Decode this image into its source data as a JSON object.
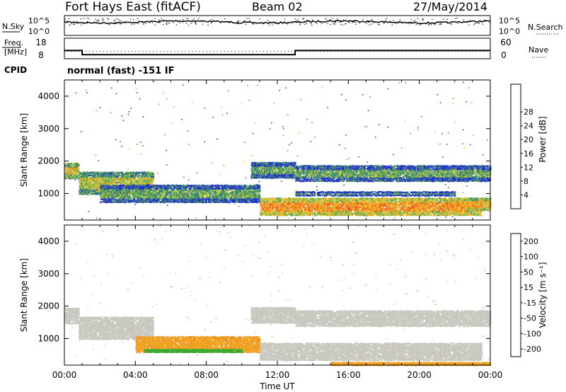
{
  "header": {
    "station": "Fort Hays East (fitACF)",
    "beam": "Beam 02",
    "date": "27/May/2014"
  },
  "noise_panel": {
    "left_label": "N.Sky",
    "right_label": "N.Search",
    "left_ticks": [
      "10^5",
      "10^0"
    ],
    "right_ticks": [
      "10^5",
      "10^0"
    ]
  },
  "freq_panel": {
    "left_label_line1": "Freq.",
    "left_label_line2": "[MHz]",
    "right_label": "Nave",
    "left_ticks": [
      "18",
      "8"
    ],
    "right_ticks": [
      "60",
      "0"
    ],
    "freq_mhz_levels": [
      {
        "from_hour": 0,
        "to_hour": 1.0,
        "value": 12
      },
      {
        "from_hour": 1.0,
        "to_hour": 13.0,
        "value": 10
      },
      {
        "from_hour": 13.0,
        "to_hour": 24,
        "value": 12
      }
    ]
  },
  "cpid": {
    "label": "CPID",
    "text": "normal (fast) -151 IF"
  },
  "chart_data": [
    {
      "type": "heatmap",
      "panel": "power",
      "ylabel": "Slant Range [km]",
      "y_ticks": [
        "1000",
        "2000",
        "3000",
        "4000"
      ],
      "ylim": [
        180,
        4500
      ],
      "xlim_hours": [
        0,
        24
      ],
      "colorbar_label": "Power [dB]",
      "colorbar_ticks": [
        "4",
        "8",
        "12",
        "16",
        "20",
        "24",
        "28"
      ],
      "colorbar_colors": [
        "#1f1fe0",
        "#2a4bb0",
        "#3a7f7a",
        "#5aa850",
        "#b8c94a",
        "#f0b020",
        "#f08a20",
        "#f05a20",
        "#e81818"
      ],
      "bands": [
        {
          "t0": 0,
          "t1": 0.8,
          "r0": 1480,
          "r1": 1980,
          "level": 18
        },
        {
          "t0": 0.8,
          "t1": 5.0,
          "r0": 1000,
          "r1": 1700,
          "level": 16
        },
        {
          "t0": 2.0,
          "t1": 11.0,
          "r0": 750,
          "r1": 1300,
          "level": 12
        },
        {
          "t0": 10.5,
          "t1": 13.0,
          "r0": 1500,
          "r1": 2000,
          "level": 12
        },
        {
          "t0": 11.0,
          "t1": 23.5,
          "r0": 350,
          "r1": 900,
          "level": 22
        },
        {
          "t0": 13.0,
          "t1": 24,
          "r0": 1400,
          "r1": 1900,
          "level": 12
        },
        {
          "t0": 13.0,
          "t1": 22.0,
          "r0": 950,
          "r1": 1100,
          "level": 10
        },
        {
          "t0": 22.5,
          "t1": 24,
          "r0": 500,
          "r1": 900,
          "level": 20
        }
      ]
    },
    {
      "type": "heatmap",
      "panel": "velocity",
      "ylabel": "Slant Range [km]",
      "y_ticks": [
        "1000",
        "2000",
        "3000",
        "4000"
      ],
      "ylim": [
        180,
        4500
      ],
      "xlim_hours": [
        0,
        24
      ],
      "xlabel": "Time UT",
      "x_ticks": [
        "00:00",
        "04:00",
        "08:00",
        "12:00",
        "16:00",
        "20:00",
        "00:00"
      ],
      "colorbar_label": "Velocity [m s⁻¹]",
      "colorbar_ticks": [
        "200",
        "100",
        "50",
        "15",
        "-15",
        "-50",
        "-100",
        "-200"
      ],
      "colorbar_colors": [
        "#2040b0",
        "#2a7a4a",
        "#3aaa30",
        "#8ad040",
        "#c8c8c0",
        "#f0a020",
        "#f07818",
        "#e81818"
      ],
      "bands": [
        {
          "t0": 0,
          "t1": 0.8,
          "r0": 1480,
          "r1": 1980,
          "level": 0
        },
        {
          "t0": 0.8,
          "t1": 5.0,
          "r0": 1000,
          "r1": 1700,
          "level": 0
        },
        {
          "t0": 4.0,
          "t1": 11.0,
          "r0": 600,
          "r1": 1100,
          "level": -40
        },
        {
          "t0": 4.5,
          "t1": 10.0,
          "r0": 600,
          "r1": 700,
          "level": 60
        },
        {
          "t0": 10.5,
          "t1": 13.0,
          "r0": 1500,
          "r1": 2000,
          "level": 0
        },
        {
          "t0": 11.0,
          "t1": 23.5,
          "r0": 350,
          "r1": 900,
          "level": 0
        },
        {
          "t0": 13.0,
          "t1": 24,
          "r0": 1400,
          "r1": 1900,
          "level": 0
        },
        {
          "t0": 15.0,
          "t1": 24,
          "r0": 200,
          "r1": 300,
          "level": -30
        }
      ]
    }
  ]
}
